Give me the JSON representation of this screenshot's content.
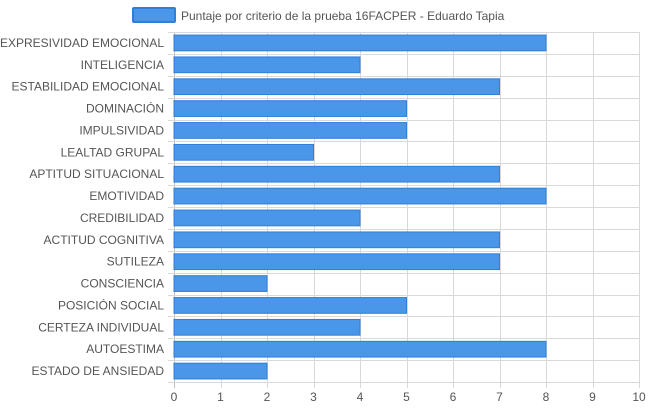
{
  "chart_data": {
    "type": "bar",
    "orientation": "horizontal",
    "legend": {
      "label": "Puntaje por criterio de la prueba 16FACPER - Eduardo Tapia",
      "position": "top-center"
    },
    "categories": [
      "EXPRESIVIDAD EMOCIONAL",
      "INTELIGENCIA",
      "ESTABILIDAD EMOCIONAL",
      "DOMINACIÓN",
      "IMPULSIVIDAD",
      "LEALTAD GRUPAL",
      "APTITUD SITUACIONAL",
      "EMOTIVIDAD",
      "CREDIBILIDAD",
      "ACTITUD COGNITIVA",
      "SUTILEZA",
      "CONSCIENCIA",
      "POSICIÓN SOCIAL",
      "CERTEZA INDIVIDUAL",
      "AUTOESTIMA",
      "ESTADO DE ANSIEDAD"
    ],
    "series": [
      {
        "name": "Puntaje por criterio de la prueba 16FACPER - Eduardo Tapia",
        "values": [
          8,
          4,
          7,
          5,
          5,
          3,
          7,
          8,
          4,
          7,
          7,
          2,
          5,
          4,
          8,
          2
        ]
      }
    ],
    "xlim": [
      0,
      10
    ],
    "xticks": [
      0,
      1,
      2,
      3,
      4,
      5,
      6,
      7,
      8,
      9,
      10
    ],
    "grid": true,
    "colors": {
      "bar_fill": "#4a97ea",
      "bar_stroke": "#2f7fd8",
      "grid": "#d9d9d9",
      "axis_text": "#555555"
    }
  }
}
